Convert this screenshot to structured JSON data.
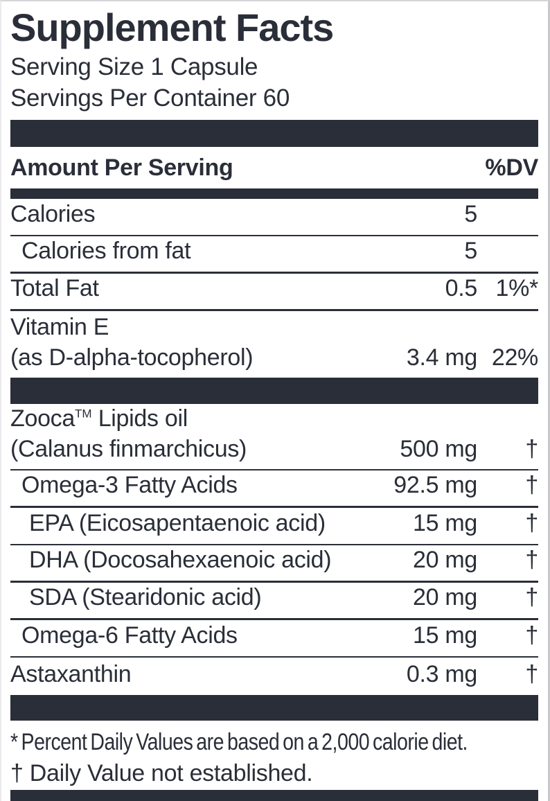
{
  "panel": {
    "title": "Supplement Facts",
    "serving_size": "Serving Size 1 Capsule",
    "servings_per_container": "Servings Per Container 60",
    "columns": {
      "amount_header": "Amount Per Serving",
      "dv_header": "%DV"
    },
    "rows": [
      {
        "name": "Calories",
        "amount": "5",
        "dv": "",
        "indent": 0
      },
      {
        "name": "Calories from fat",
        "amount": "5",
        "dv": "",
        "indent": 1
      },
      {
        "name": "Total Fat",
        "amount": "0.5",
        "dv": "1%*",
        "indent": 0
      },
      {
        "name_line1": "Vitamin E",
        "name_line2": "(as D-alpha-tocopherol)",
        "amount": "3.4 mg",
        "dv": "22%",
        "indent": 0
      },
      {
        "name_brand": "Zooca",
        "trademark": "TM",
        "name_rest": " Lipids oil",
        "name_line2": "(Calanus finmarchicus)",
        "amount": "500 mg",
        "dv": "†",
        "indent": 0
      },
      {
        "name": "Omega-3 Fatty Acids",
        "amount": "92.5 mg",
        "dv": "†",
        "indent": 1
      },
      {
        "name": "EPA (Eicosapentaenoic acid)",
        "amount": "15 mg",
        "dv": "†",
        "indent": 2
      },
      {
        "name": "DHA (Docosahexaenoic acid)",
        "amount": "20 mg",
        "dv": "†",
        "indent": 2
      },
      {
        "name": "SDA (Stearidonic acid)",
        "amount": "20 mg",
        "dv": "†",
        "indent": 2
      },
      {
        "name": "Omega-6 Fatty Acids",
        "amount": "15 mg",
        "dv": "†",
        "indent": 1
      },
      {
        "name": "Astaxanthin",
        "amount": "0.3 mg",
        "dv": "†",
        "indent": 0
      }
    ],
    "footnotes": [
      "* Percent Daily Values are based on a 2,000 calorie diet.",
      "† Daily Value not established."
    ],
    "colors": {
      "ink": "#2a2e38",
      "background": "#ffffff",
      "edge_border": "#c7c7cc"
    }
  }
}
